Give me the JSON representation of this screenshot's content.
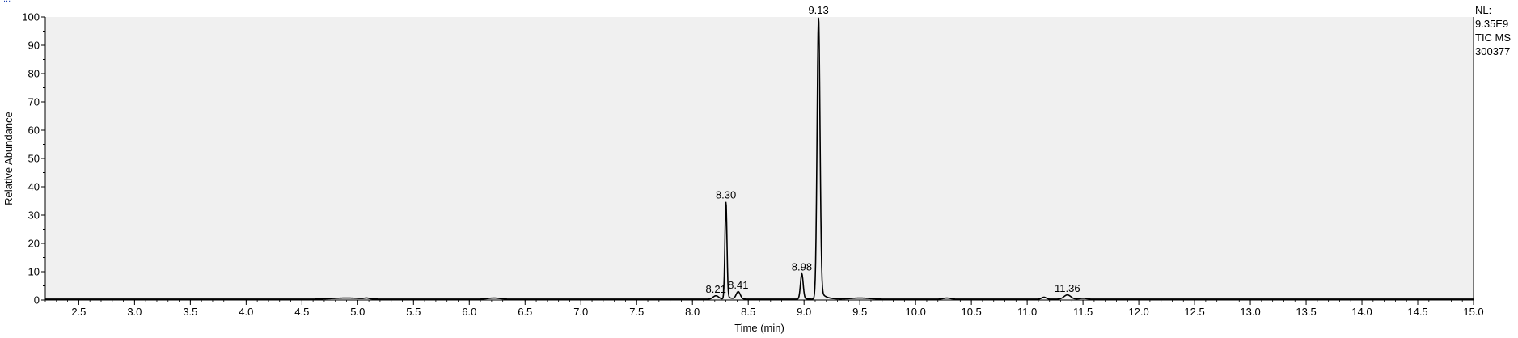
{
  "header": {
    "cut_text": "..."
  },
  "meta": {
    "nl_label": "NL:",
    "nl_value": "9.35E9",
    "trace": "TIC  MS",
    "sample": "300377"
  },
  "chart_data": {
    "type": "line",
    "title": "",
    "xlabel": "Time (min)",
    "ylabel": "Relative Abundance",
    "xlim": [
      2.2,
      15.0
    ],
    "ylim": [
      0,
      100
    ],
    "x_ticks": [
      2.5,
      3.0,
      3.5,
      4.0,
      4.5,
      5.0,
      5.5,
      6.0,
      6.5,
      7.0,
      7.5,
      8.0,
      8.5,
      9.0,
      9.5,
      10.0,
      10.5,
      11.0,
      11.5,
      12.0,
      12.5,
      13.0,
      13.5,
      14.0,
      14.5,
      15.0
    ],
    "x_tick_labels": [
      "2.5",
      "3.0",
      "3.5",
      "4.0",
      "4.5",
      "5.0",
      "5.5",
      "6.0",
      "6.5",
      "7.0",
      "7.5",
      "8.0",
      "8.5",
      "9.0",
      "9.5",
      "10.0",
      "10.5",
      "11.0",
      "11.5",
      "12.0",
      "12.5",
      "13.0",
      "13.5",
      "14.0",
      "14.5",
      "15.0"
    ],
    "y_ticks": [
      0,
      10,
      20,
      30,
      40,
      50,
      60,
      70,
      80,
      90,
      100
    ],
    "y_tick_labels": [
      "0",
      "10",
      "20",
      "30",
      "40",
      "50",
      "60",
      "70",
      "80",
      "90",
      "100"
    ],
    "grid": false,
    "background": "#f0f0f0",
    "line_color": "#000000",
    "baseline": 0.3,
    "peaks": [
      {
        "rt": 4.9,
        "height": 0.4,
        "width": 0.12,
        "tail": 0
      },
      {
        "rt": 5.08,
        "height": 0.3,
        "width": 0.02,
        "tail": 0
      },
      {
        "rt": 6.22,
        "height": 0.4,
        "width": 0.05,
        "tail": 0
      },
      {
        "rt": 8.21,
        "height": 1.2,
        "width": 0.025,
        "tail": 0.03
      },
      {
        "rt": 8.3,
        "height": 34.5,
        "width": 0.009,
        "tail": 0.035
      },
      {
        "rt": 8.41,
        "height": 2.6,
        "width": 0.018,
        "tail": 0.03
      },
      {
        "rt": 8.98,
        "height": 9.0,
        "width": 0.012,
        "tail": 0.03
      },
      {
        "rt": 9.13,
        "height": 99.7,
        "width": 0.013,
        "tail": 0.045
      },
      {
        "rt": 9.5,
        "height": 0.4,
        "width": 0.08,
        "tail": 0
      },
      {
        "rt": 10.28,
        "height": 0.4,
        "width": 0.03,
        "tail": 0
      },
      {
        "rt": 11.15,
        "height": 0.7,
        "width": 0.02,
        "tail": 0
      },
      {
        "rt": 11.36,
        "height": 1.5,
        "width": 0.03,
        "tail": 0.03
      },
      {
        "rt": 11.5,
        "height": 0.3,
        "width": 0.03,
        "tail": 0
      }
    ],
    "peak_labels": [
      {
        "text": "8.21",
        "x": 8.21,
        "y": 1.2
      },
      {
        "text": "8.30",
        "x": 8.3,
        "y": 34.5
      },
      {
        "text": "8.41",
        "x": 8.41,
        "y": 2.6
      },
      {
        "text": "8.98",
        "x": 8.98,
        "y": 9.0
      },
      {
        "text": "9.13",
        "x": 9.13,
        "y": 99.7
      },
      {
        "text": "11.36",
        "x": 11.36,
        "y": 1.5
      }
    ]
  }
}
